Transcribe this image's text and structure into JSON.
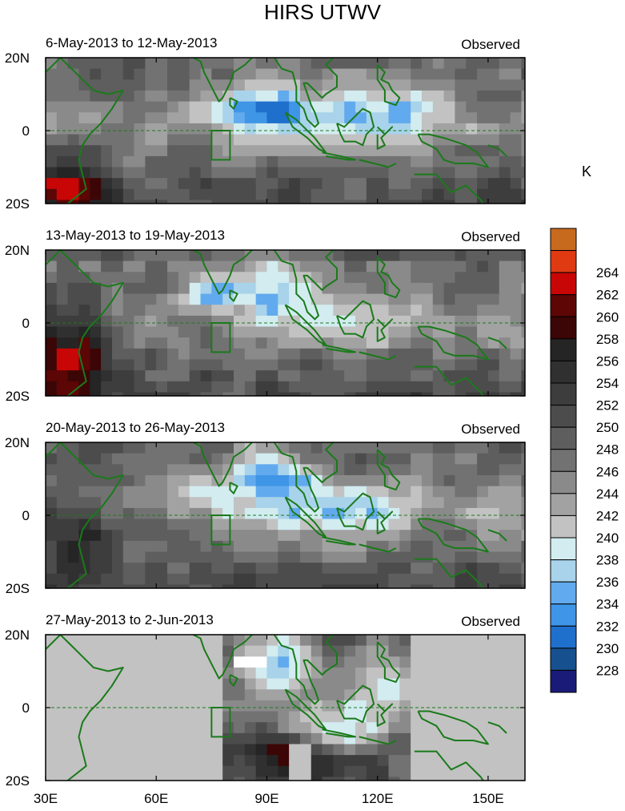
{
  "chart_data": {
    "type": "heatmap",
    "title": "HIRS UTWV",
    "colorbar": {
      "unit": "K",
      "levels": [
        228,
        230,
        232,
        234,
        236,
        238,
        240,
        242,
        244,
        246,
        248,
        250,
        252,
        254,
        256,
        258,
        260,
        262,
        264
      ],
      "colors": [
        "#1a1a78",
        "#16508f",
        "#1f6fcc",
        "#3f95e6",
        "#62aaee",
        "#a8d3ea",
        "#d2ecf0",
        "#c2c2c2",
        "#a2a2a2",
        "#8a8a8a",
        "#727272",
        "#5e5e5e",
        "#4c4c4c",
        "#3d3d3d",
        "#303030",
        "#252525",
        "#3c0606",
        "#5c0606",
        "#c80606",
        "#e03a12",
        "#c86a1e"
      ]
    },
    "x_ticks": [
      "30E",
      "60E",
      "90E",
      "120E",
      "150E"
    ],
    "x_tick_values": [
      30,
      60,
      90,
      120,
      150
    ],
    "xlim": [
      30,
      160
    ],
    "y_ticks": [
      "20N",
      "0",
      "20S"
    ],
    "y_tick_values": [
      20,
      0,
      -20
    ],
    "ylim": [
      -20,
      20
    ],
    "panels": [
      {
        "period": "6-May-2013 to 12-May-2013",
        "label": "Observed"
      },
      {
        "period": "13-May-2013 to 19-May-2013",
        "label": "Observed"
      },
      {
        "period": "20-May-2013 to 26-May-2013",
        "label": "Observed"
      },
      {
        "period": "27-May-2013 to 2-Jun-2013",
        "label": "Observed"
      }
    ],
    "coast_color": "#1a7a1a",
    "equator": "dashed"
  }
}
